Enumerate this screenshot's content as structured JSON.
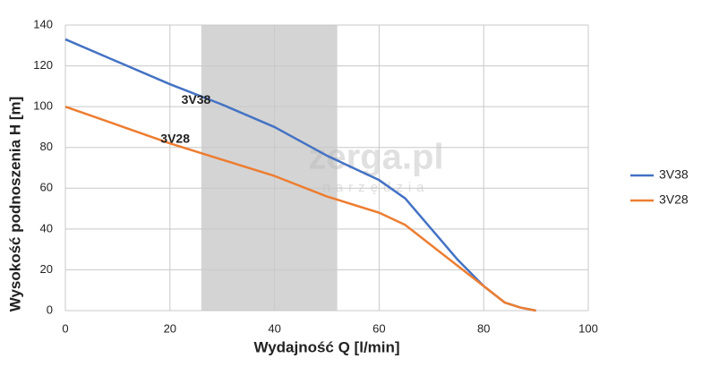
{
  "chart_data": {
    "type": "line",
    "x_label": "Wydajność Q [l/min]",
    "y_label": "Wysokość podnoszenia H [m]",
    "xlim": [
      0,
      100
    ],
    "xticks": [
      0,
      20,
      40,
      60,
      80,
      100
    ],
    "ylim": [
      0,
      140
    ],
    "yticks": [
      0,
      20,
      40,
      60,
      80,
      100,
      120,
      140
    ],
    "grid": true,
    "legend_position": "right",
    "highlight_range": [
      26,
      52
    ],
    "watermark": "zerga.pl",
    "watermark_sub": "narzędzia",
    "x": [
      0,
      10,
      20,
      30,
      40,
      50,
      60,
      65,
      70,
      75,
      80,
      84,
      87,
      90
    ],
    "series": [
      {
        "name": "3V38",
        "color": "#4472c4",
        "values": [
          133,
          122,
          111,
          101,
          90,
          76,
          64,
          55,
          40,
          25,
          12,
          4,
          1.5,
          0
        ]
      },
      {
        "name": "3V28",
        "color": "#ed7d31",
        "values": [
          100,
          91,
          82,
          74,
          66,
          56,
          48,
          42,
          32,
          22,
          12,
          4,
          1.5,
          0
        ]
      }
    ],
    "annotations": [
      {
        "text": "3V38",
        "x": 25,
        "y": 103
      },
      {
        "text": "3V28",
        "x": 21,
        "y": 84
      }
    ]
  }
}
